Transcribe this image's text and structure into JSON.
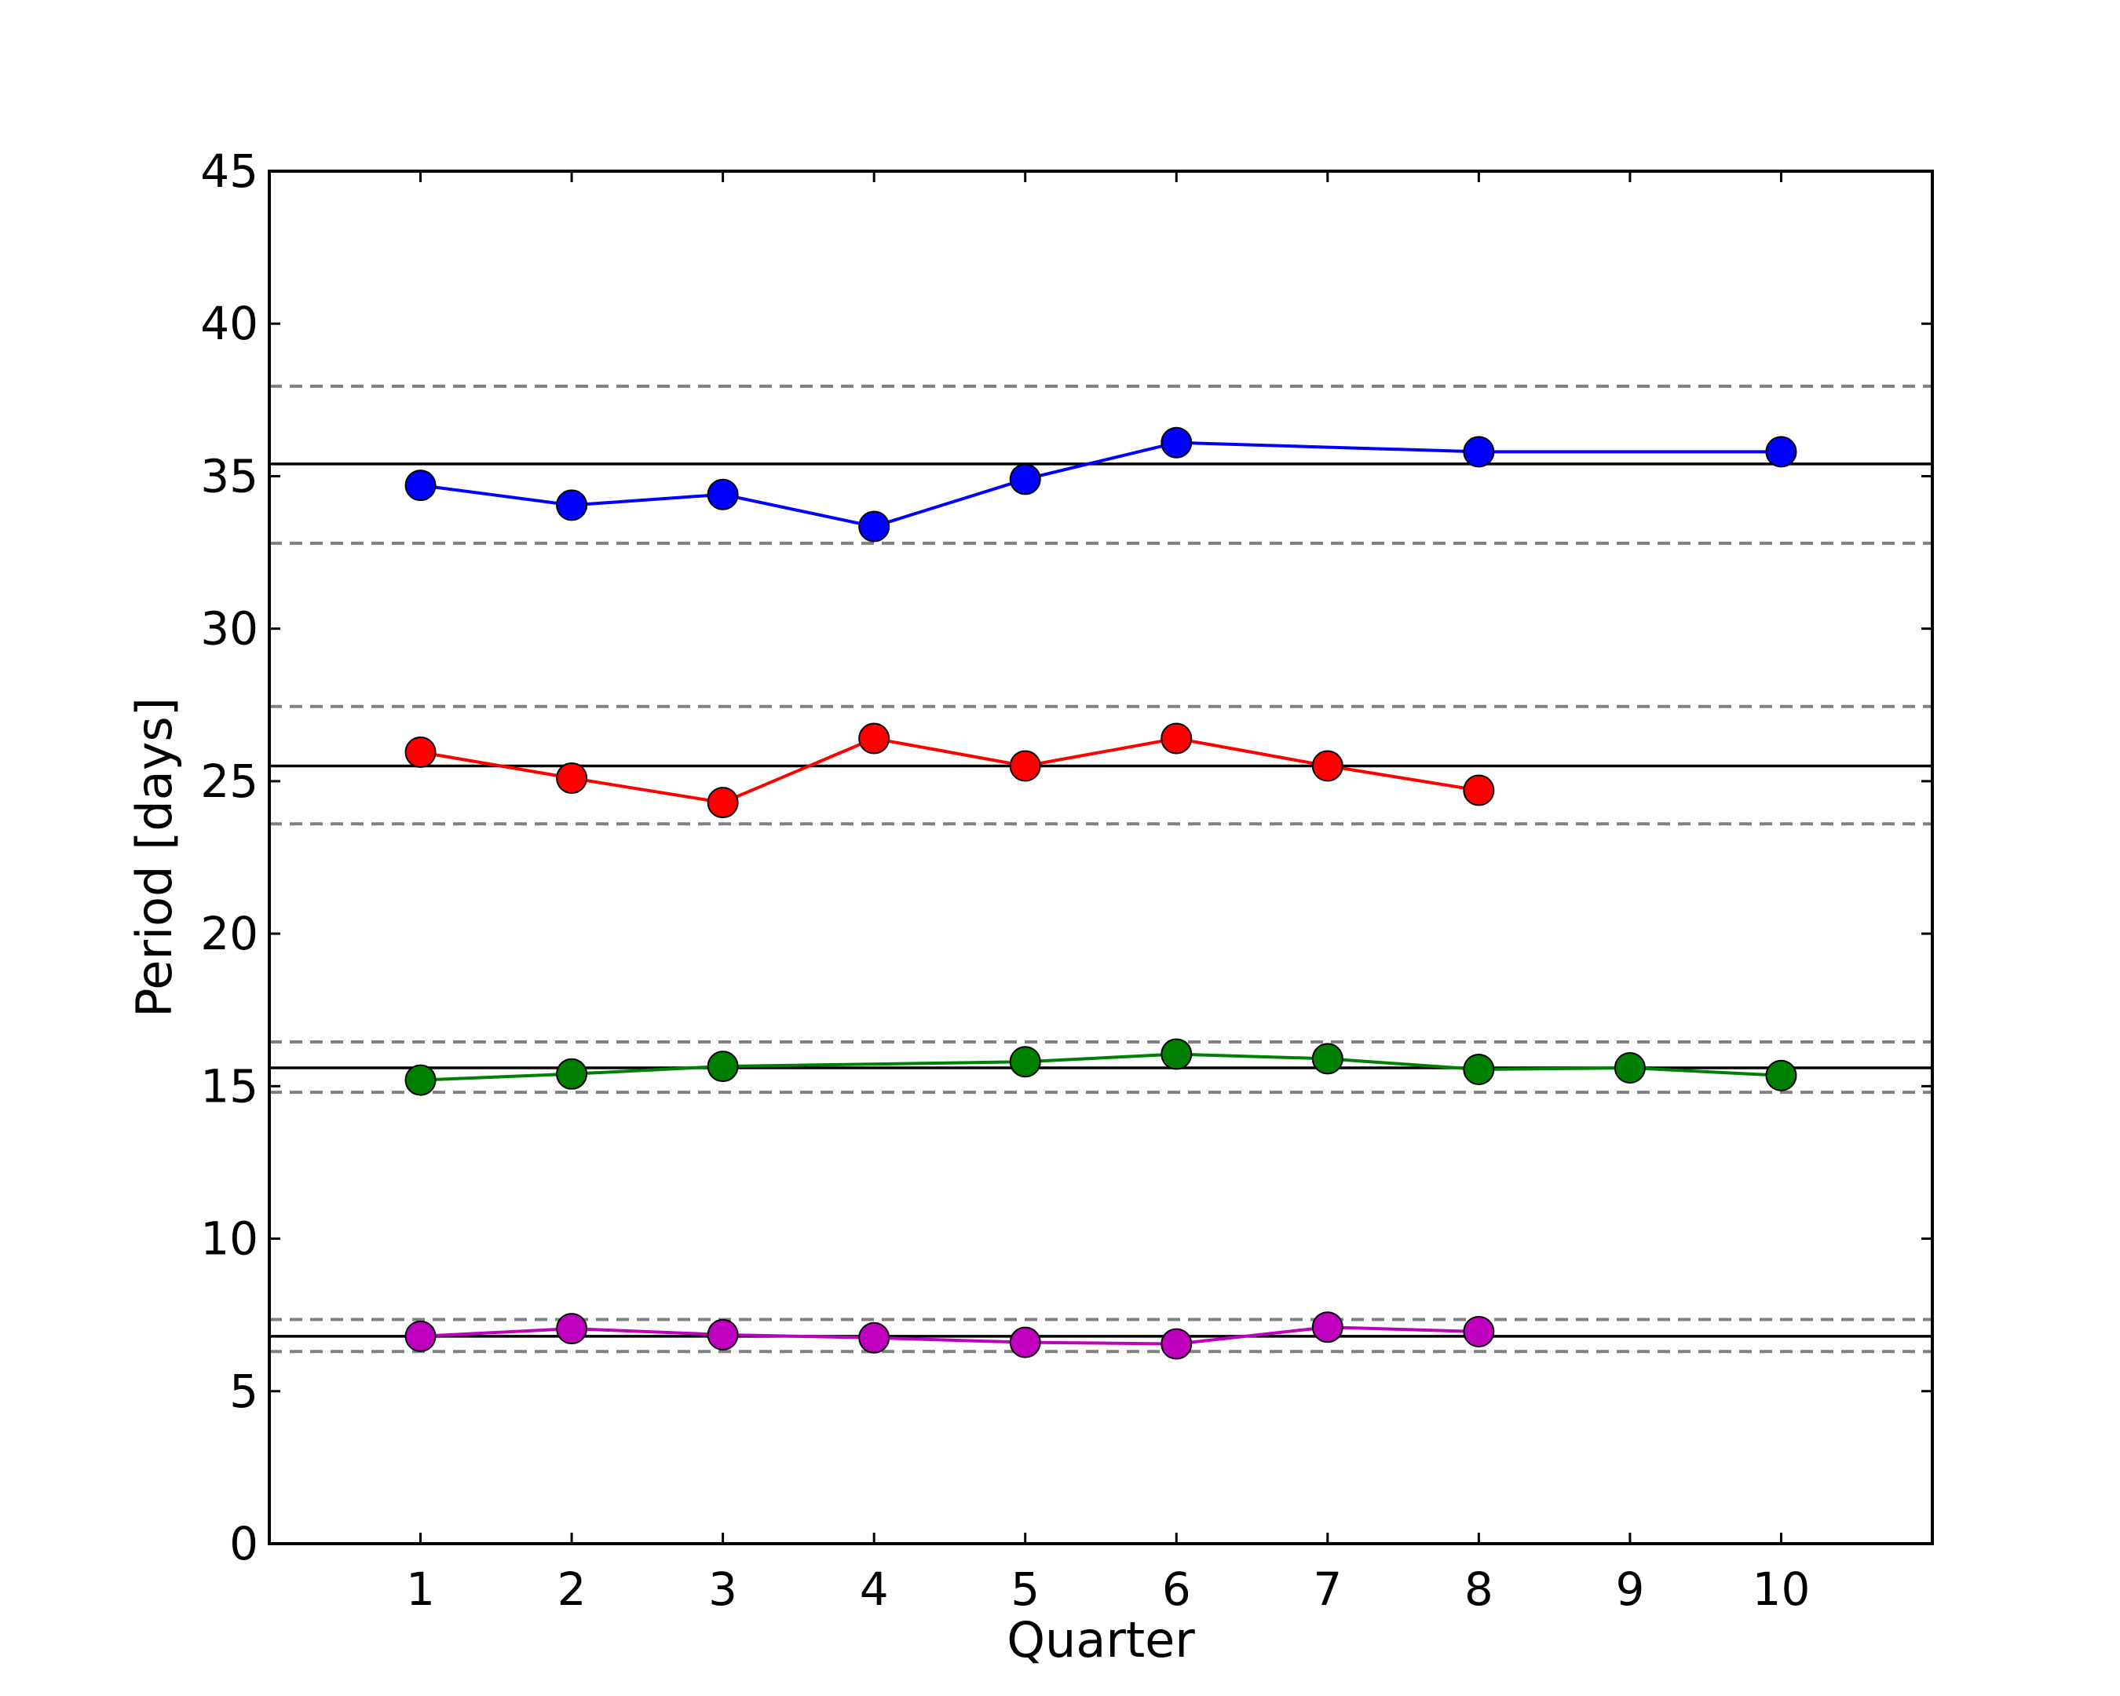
{
  "chart_data": {
    "type": "line",
    "title": "",
    "xlabel": "Quarter",
    "ylabel": "Period [days]",
    "xlim": [
      0,
      11
    ],
    "ylim": [
      0,
      45
    ],
    "xticks": [
      1,
      2,
      3,
      4,
      5,
      6,
      7,
      8,
      9,
      10
    ],
    "yticks": [
      0,
      5,
      10,
      15,
      20,
      25,
      30,
      35,
      40,
      45
    ],
    "grid": false,
    "legend": "none",
    "series": [
      {
        "color": "#0000ff",
        "marker": "circle",
        "x": [
          1,
          2,
          3,
          4,
          5,
          6,
          8,
          10
        ],
        "y": [
          34.7,
          34.05,
          34.4,
          33.35,
          34.9,
          36.1,
          35.8,
          35.8
        ]
      },
      {
        "color": "#ff0000",
        "marker": "circle",
        "x": [
          1,
          2,
          3,
          4,
          5,
          6,
          7,
          8
        ],
        "y": [
          25.95,
          25.1,
          24.3,
          26.4,
          25.5,
          26.4,
          25.5,
          24.7
        ]
      },
      {
        "color": "#008000",
        "marker": "circle",
        "x": [
          1,
          2,
          3,
          5,
          6,
          7,
          8,
          9,
          10
        ],
        "y": [
          15.2,
          15.4,
          15.65,
          15.8,
          16.05,
          15.9,
          15.55,
          15.6,
          15.35
        ]
      },
      {
        "color": "#bf00bf",
        "marker": "circle",
        "x": [
          1,
          2,
          3,
          4,
          5,
          6,
          7,
          8
        ],
        "y": [
          6.8,
          7.05,
          6.85,
          6.75,
          6.6,
          6.55,
          7.1,
          6.95
        ]
      }
    ],
    "reference_lines": [
      {
        "y": 35.4,
        "style": "solid",
        "color": "#000000"
      },
      {
        "y": 37.95,
        "style": "dashed",
        "color": "#808080"
      },
      {
        "y": 32.8,
        "style": "dashed",
        "color": "#808080"
      },
      {
        "y": 25.5,
        "style": "solid",
        "color": "#000000"
      },
      {
        "y": 27.45,
        "style": "dashed",
        "color": "#808080"
      },
      {
        "y": 23.6,
        "style": "dashed",
        "color": "#808080"
      },
      {
        "y": 15.6,
        "style": "solid",
        "color": "#000000"
      },
      {
        "y": 16.45,
        "style": "dashed",
        "color": "#808080"
      },
      {
        "y": 14.8,
        "style": "dashed",
        "color": "#808080"
      },
      {
        "y": 6.8,
        "style": "solid",
        "color": "#000000"
      },
      {
        "y": 7.35,
        "style": "dashed",
        "color": "#808080"
      },
      {
        "y": 6.3,
        "style": "dashed",
        "color": "#808080"
      }
    ]
  }
}
